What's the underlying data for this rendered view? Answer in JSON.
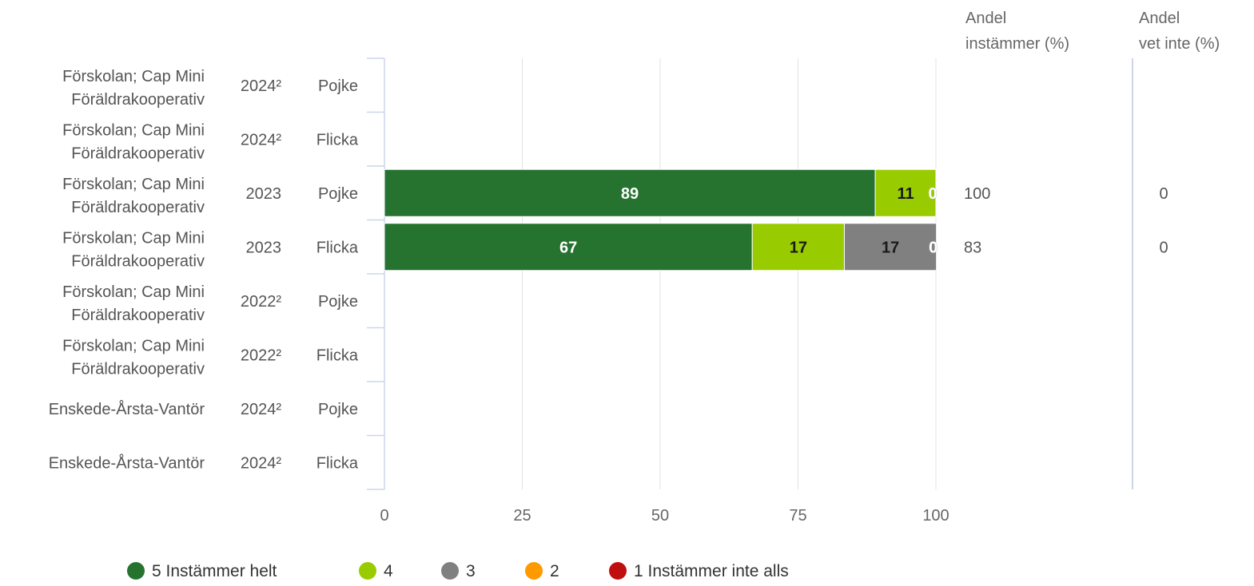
{
  "chart_data": {
    "type": "bar",
    "orientation": "horizontal",
    "stacked": true,
    "rows": [
      {
        "unit_line1": "Förskolan; Cap Mini",
        "unit_line2": "Föräldrakooperativ",
        "year": "2024²",
        "gender": "Pojke",
        "values": null,
        "andel_instammer": "",
        "andel_vet_inte": ""
      },
      {
        "unit_line1": "Förskolan; Cap Mini",
        "unit_line2": "Föräldrakooperativ",
        "year": "2024²",
        "gender": "Flicka",
        "values": null,
        "andel_instammer": "",
        "andel_vet_inte": ""
      },
      {
        "unit_line1": "Förskolan; Cap Mini",
        "unit_line2": "Föräldrakooperativ",
        "year": "2023",
        "gender": "Pojke",
        "values": [
          89,
          11,
          0,
          0,
          0
        ],
        "labels": [
          "89",
          "11",
          "0",
          "",
          ""
        ],
        "andel_instammer": "100",
        "andel_vet_inte": "0"
      },
      {
        "unit_line1": "Förskolan; Cap Mini",
        "unit_line2": "Föräldrakooperativ",
        "year": "2023",
        "gender": "Flicka",
        "values": [
          66.7,
          16.7,
          16.7,
          0,
          0
        ],
        "labels": [
          "67",
          "17",
          "17",
          "0",
          ""
        ],
        "andel_instammer": "83",
        "andel_vet_inte": "0"
      },
      {
        "unit_line1": "Förskolan; Cap Mini",
        "unit_line2": "Föräldrakooperativ",
        "year": "2022²",
        "gender": "Pojke",
        "values": null,
        "andel_instammer": "",
        "andel_vet_inte": ""
      },
      {
        "unit_line1": "Förskolan; Cap Mini",
        "unit_line2": "Föräldrakooperativ",
        "year": "2022²",
        "gender": "Flicka",
        "values": null,
        "andel_instammer": "",
        "andel_vet_inte": ""
      },
      {
        "unit_line1": "Enskede-Årsta-Vantör",
        "unit_line2": "",
        "year": "2024²",
        "gender": "Pojke",
        "values": null,
        "andel_instammer": "",
        "andel_vet_inte": ""
      },
      {
        "unit_line1": "Enskede-Årsta-Vantör",
        "unit_line2": "",
        "year": "2024²",
        "gender": "Flicka",
        "values": null,
        "andel_instammer": "",
        "andel_vet_inte": ""
      }
    ],
    "series": [
      {
        "name": "5 Instämmer helt",
        "color": "#267330",
        "label_color": "#ffffff"
      },
      {
        "name": "4",
        "color": "#99cc00",
        "label_color": "#1a1a1a"
      },
      {
        "name": "3",
        "color": "#808080",
        "label_color": "#1a1a1a"
      },
      {
        "name": "2",
        "color": "#ff9900",
        "label_color": "#1a1a1a"
      },
      {
        "name": "1 Instämmer inte alls",
        "color": "#c00f0f",
        "label_color": "#ffffff"
      }
    ],
    "xlim": [
      0,
      100
    ],
    "x_ticks": [
      0,
      25,
      50,
      75,
      100
    ],
    "grid": true,
    "legend_position": "bottom",
    "column_headers": {
      "andel_instammer": [
        "Andel",
        "instämmer (%)"
      ],
      "andel_vet_inte": [
        "Andel",
        "vet inte (%)"
      ]
    }
  }
}
